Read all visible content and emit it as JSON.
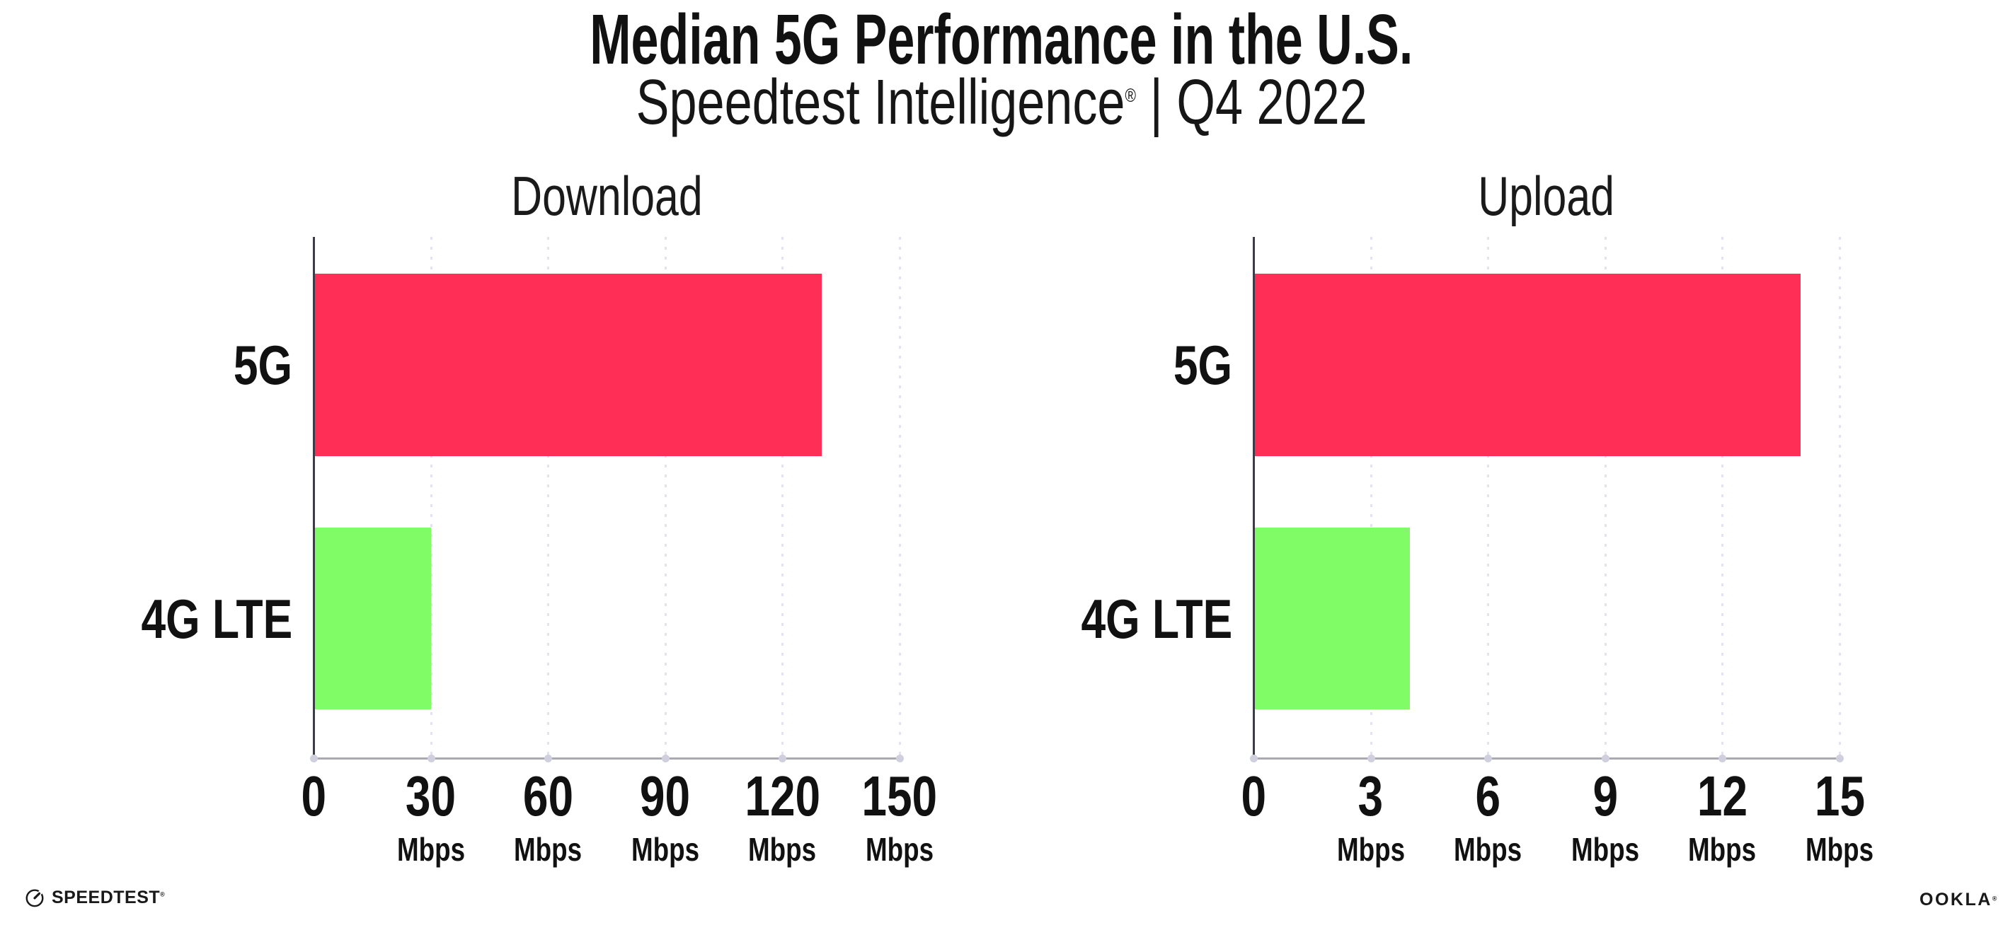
{
  "header": {
    "title": "Median 5G Performance in the U.S.",
    "subtitle_brand": "Speedtest Intelligence",
    "subtitle_reg": "®",
    "subtitle_rest": "| Q4 2022"
  },
  "chart_data": [
    {
      "type": "bar",
      "orientation": "horizontal",
      "title": "Download",
      "categories": [
        "5G",
        "4G LTE"
      ],
      "values": [
        130,
        30
      ],
      "unit": "Mbps",
      "xlim": [
        0,
        150
      ],
      "xticks": [
        0,
        30,
        60,
        90,
        120,
        150
      ],
      "bar_colors": [
        "#FF2E56",
        "#80FD66"
      ],
      "grid": "dotted-vertical",
      "legend": "none"
    },
    {
      "type": "bar",
      "orientation": "horizontal",
      "title": "Upload",
      "categories": [
        "5G",
        "4G LTE"
      ],
      "values": [
        14,
        4
      ],
      "unit": "Mbps",
      "xlim": [
        0,
        15
      ],
      "xticks": [
        0,
        3,
        6,
        9,
        12,
        15
      ],
      "bar_colors": [
        "#FF2E56",
        "#80FD66"
      ],
      "grid": "dotted-vertical",
      "legend": "none"
    }
  ],
  "colors": {
    "bar_5g": "#FF2E56",
    "bar_4g_lte": "#80FD66",
    "gridline": "#E3E2EE",
    "y_axis": "#3C3C46",
    "x_axis": "#A9A9B2",
    "tick_dot": "#CFCFDD",
    "text": "#111111"
  },
  "footer": {
    "speedtest_label": "SPEEDTEST",
    "speedtest_mark": "®",
    "ookla_label": "OOKLA",
    "ookla_mark": "®"
  }
}
